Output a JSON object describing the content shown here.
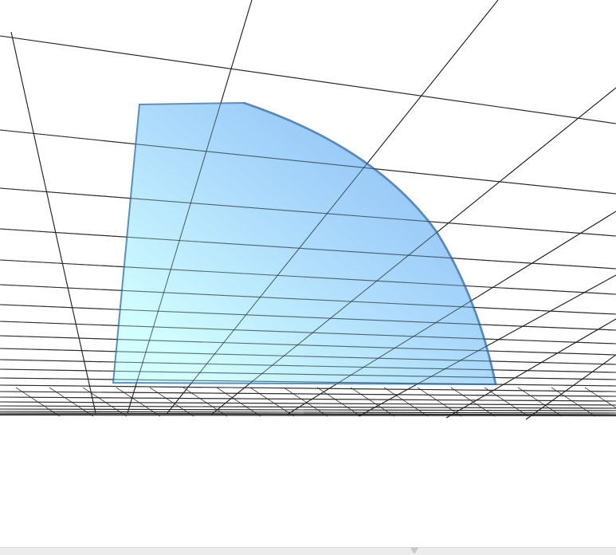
{
  "viewer": {
    "background_color": "#ffffff",
    "grid_color": "#1f1f1f",
    "surface_edge_color": "#5b8fc4"
  },
  "surface": {
    "gradient_start": "#c8ffff",
    "gradient_end": "#7ab8f5"
  },
  "status_bar": {
    "color": "#ececec",
    "handle_icon": "chevron-down-icon"
  }
}
